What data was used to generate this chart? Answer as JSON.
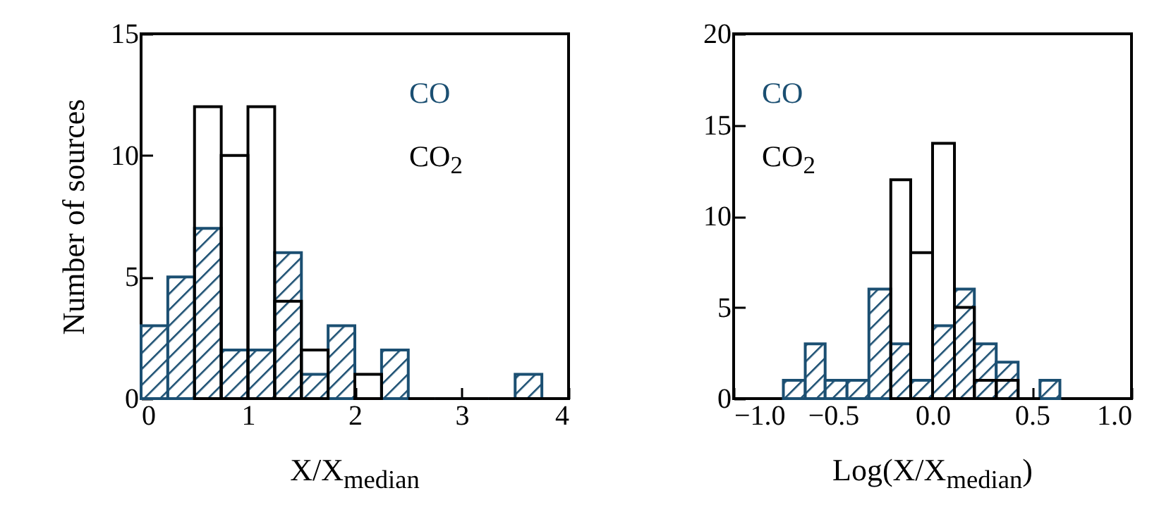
{
  "chart_data": [
    {
      "type": "histogram",
      "xlabel": "X/X$_{median}$",
      "ylabel": "Number of sources",
      "bins": [
        0,
        0.25,
        0.5,
        0.75,
        1,
        1.25,
        1.5,
        1.75,
        2,
        2.25,
        2.5,
        2.75,
        3,
        3.25,
        3.5,
        3.75,
        4
      ],
      "series": [
        {
          "name": "CO",
          "color": "#1b4f72",
          "values": [
            3,
            5,
            7,
            2,
            2,
            6,
            1,
            3,
            0,
            2,
            0,
            0,
            0,
            0,
            1,
            0
          ]
        },
        {
          "name": "CO$_{2}$",
          "color": "#000000",
          "values": [
            null,
            null,
            12,
            10,
            12,
            4,
            2,
            null,
            1,
            null,
            0,
            0,
            0,
            0,
            0,
            0
          ]
        }
      ],
      "xlim": [
        0,
        4
      ],
      "ylim": [
        0,
        15
      ],
      "xticks": [
        0,
        1,
        2,
        3,
        4
      ],
      "yticks": [
        0,
        5,
        10,
        15
      ]
    },
    {
      "type": "histogram",
      "xlabel": "Log(X/X$_{median}$)",
      "bins": [
        -0.75,
        -0.64,
        -0.54,
        -0.43,
        -0.32,
        -0.21,
        -0.11,
        0,
        0.11,
        0.21,
        0.32,
        0.43,
        0.54,
        0.64
      ],
      "series": [
        {
          "name": "CO",
          "color": "#1b4f72",
          "values": [
            1,
            3,
            1,
            1,
            6,
            3,
            1,
            4,
            6,
            3,
            2,
            0,
            1
          ]
        },
        {
          "name": "CO$_{2}$",
          "color": "#000000",
          "values": [
            null,
            null,
            null,
            null,
            null,
            12,
            8,
            14,
            5,
            1,
            1,
            0,
            null
          ]
        }
      ],
      "xlim": [
        -1,
        1
      ],
      "ylim": [
        0,
        20
      ],
      "xticks": [
        {
          "value": -1,
          "label": "−1.0"
        },
        {
          "value": -0.5,
          "label": "−0.5"
        },
        {
          "value": 0,
          "label": "0.0"
        },
        {
          "value": 0.5,
          "label": "0.5"
        },
        {
          "value": 1,
          "label": "1.0"
        }
      ],
      "yticks": [
        0,
        5,
        10,
        15,
        20
      ]
    }
  ]
}
